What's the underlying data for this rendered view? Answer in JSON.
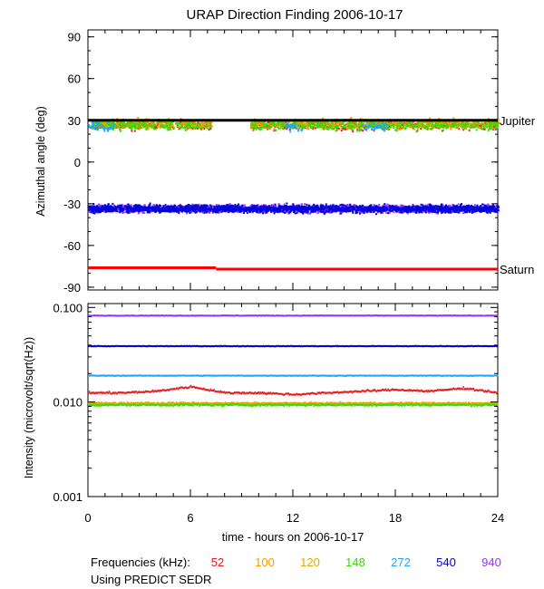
{
  "chart_data": {
    "type": "scatter",
    "title": "URAP Direction Finding  2006-10-17",
    "xlabel": "time - hours on 2006-10-17",
    "xlim": [
      0,
      24
    ],
    "xticks": [
      "0",
      "6",
      "12",
      "18",
      "24"
    ],
    "frequency_label": "Frequencies (kHz):",
    "frequencies": [
      {
        "label": "52",
        "color": "#e41a1c"
      },
      {
        "label": "100",
        "color": "#ff9900"
      },
      {
        "label": "120",
        "color": "#ddaa00"
      },
      {
        "label": "148",
        "color": "#33dd00"
      },
      {
        "label": "272",
        "color": "#1aa6ff"
      },
      {
        "label": "540",
        "color": "#0000dd"
      },
      {
        "label": "940",
        "color": "#9933ff"
      }
    ],
    "footnote": "Using PREDICT SEDR",
    "panels": [
      {
        "name": "azimuth",
        "ylabel": "Azimuthal angle (deg)",
        "ylim": [
          -92,
          95
        ],
        "yticks": [
          "90",
          "60",
          "30",
          "0",
          "-30",
          "-60",
          "-90"
        ],
        "reference_lines": [
          {
            "label": "Jupiter",
            "color": "#000000",
            "segments": [
              {
                "x": [
                  0,
                  24
                ],
                "y": [
                  30,
                  30
                ]
              }
            ]
          },
          {
            "label": "Saturn",
            "color": "#ff0000",
            "segments": [
              {
                "x": [
                  0,
                  7.5
                ],
                "y": [
                  -76,
                  -76
                ]
              },
              {
                "x": [
                  7.5,
                  24
                ],
                "y": [
                  -77,
                  -77
                ]
              }
            ]
          }
        ],
        "series": [
          {
            "name": "940",
            "center": -33,
            "spread": 4,
            "coverage": [
              [
                0,
                24
              ]
            ]
          },
          {
            "name": "540",
            "center": -33,
            "spread": 4,
            "coverage": [
              [
                0,
                24
              ]
            ]
          },
          {
            "name": "52",
            "center": 27,
            "spread": 5,
            "coverage": [
              [
                0.2,
                7.2
              ],
              [
                9.5,
                24
              ]
            ]
          },
          {
            "name": "100",
            "center": 28,
            "spread": 5,
            "coverage": [
              [
                0.2,
                7.2
              ],
              [
                9.5,
                24
              ]
            ]
          },
          {
            "name": "120",
            "center": 28,
            "spread": 5,
            "coverage": [
              [
                0.2,
                7.2
              ],
              [
                9.5,
                24
              ]
            ]
          },
          {
            "name": "148",
            "center": 27,
            "spread": 5,
            "coverage": [
              [
                0,
                7.2
              ],
              [
                9.5,
                24
              ]
            ]
          },
          {
            "name": "272",
            "center": 26,
            "spread": 5,
            "coverage": [
              [
                0,
                1.5
              ],
              [
                11.5,
                12.5
              ],
              [
                16,
                17.5
              ]
            ]
          }
        ]
      },
      {
        "name": "intensity",
        "ylabel": "Intensity (microvolt/sqrt(Hz))",
        "scale": "log",
        "ylim": [
          0.001,
          0.11
        ],
        "yticks": [
          "0.100",
          "0.010",
          "0.001"
        ],
        "series": [
          {
            "name": "940",
            "x": [
              0,
              6,
              12,
              18,
              24
            ],
            "y": [
              0.082,
              0.082,
              0.082,
              0.082,
              0.082
            ]
          },
          {
            "name": "540",
            "x": [
              0,
              6,
              12,
              18,
              24
            ],
            "y": [
              0.039,
              0.039,
              0.039,
              0.039,
              0.039
            ]
          },
          {
            "name": "272",
            "x": [
              0,
              6,
              12,
              18,
              24
            ],
            "y": [
              0.019,
              0.019,
              0.019,
              0.019,
              0.019
            ]
          },
          {
            "name": "52",
            "x": [
              0,
              2,
              4,
              6,
              8,
              10,
              12,
              14,
              16,
              18,
              20,
              22,
              24
            ],
            "y": [
              0.0125,
              0.0125,
              0.013,
              0.0145,
              0.0125,
              0.0125,
              0.012,
              0.0125,
              0.013,
              0.0135,
              0.013,
              0.014,
              0.0125
            ]
          },
          {
            "name": "100",
            "x": [
              0,
              6,
              12,
              18,
              24
            ],
            "y": [
              0.0097,
              0.0097,
              0.0097,
              0.0097,
              0.0097
            ]
          },
          {
            "name": "120",
            "x": [
              0,
              6,
              12,
              18,
              24
            ],
            "y": [
              0.0096,
              0.0096,
              0.0096,
              0.0096,
              0.0096
            ]
          },
          {
            "name": "148",
            "x": [
              0,
              6,
              12,
              18,
              24
            ],
            "y": [
              0.0093,
              0.0093,
              0.0093,
              0.0093,
              0.0093
            ]
          }
        ]
      }
    ]
  }
}
